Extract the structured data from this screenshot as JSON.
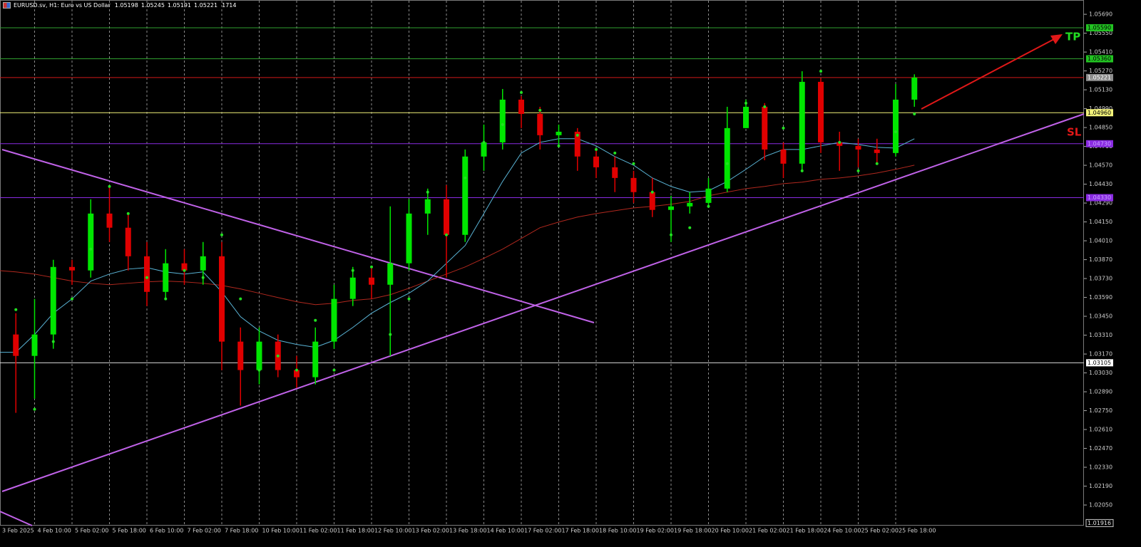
{
  "chart_data": {
    "type": "candlestick",
    "title": "EURUSD.sv, H1:  Euro vs US Dollar",
    "quote": [
      "1.05198",
      "1.05245",
      "1.05191",
      "1.05221",
      "1714"
    ],
    "categories": [
      "3 Feb 2025",
      null,
      "4 Feb 10:00",
      null,
      "5 Feb 02:00",
      null,
      "5 Feb 18:00",
      null,
      "6 Feb 10:00",
      null,
      "7 Feb 02:00",
      null,
      "7 Feb 18:00",
      null,
      "10 Feb 10:00",
      null,
      "11 Feb 02:00",
      null,
      "11 Feb 18:00",
      null,
      "12 Feb 10:00",
      null,
      "13 Feb 02:00",
      null,
      "13 Feb 18:00",
      null,
      "14 Feb 10:00",
      null,
      "17 Feb 02:00",
      null,
      "17 Feb 18:00",
      null,
      "18 Feb 10:00",
      null,
      "19 Feb 02:00",
      null,
      "19 Feb 18:00",
      null,
      "20 Feb 10:00",
      null,
      "21 Feb 02:00",
      null,
      "21 Feb 18:00",
      null,
      "24 Feb 10:00",
      null,
      "25 Feb 02:00",
      null,
      "25 Feb 18:00",
      null
    ],
    "open": [
      1.02628,
      1.03315,
      1.03156,
      1.03315,
      1.03816,
      1.0379,
      1.04212,
      1.04107,
      1.03895,
      1.03631,
      1.03843,
      1.0379,
      1.03895,
      1.03262,
      1.03051,
      1.03262,
      1.03051,
      1.02998,
      1.03262,
      1.03579,
      1.03737,
      1.03684,
      1.03843,
      1.04212,
      1.04318,
      1.04054,
      1.04635,
      1.0474,
      1.05057,
      1.04951,
      1.04793,
      1.04819,
      1.04635,
      1.04555,
      1.04476,
      1.04371,
      1.04239,
      1.04265,
      1.04291,
      1.04397,
      1.04846,
      1.05004,
      1.04687,
      1.04582,
      1.05189,
      1.0474,
      1.04714,
      1.04687,
      1.04661,
      1.05057
    ],
    "high": [
      1.03526,
      1.03473,
      1.03579,
      1.03869,
      1.03869,
      1.04318,
      1.04423,
      1.04212,
      1.04001,
      1.03948,
      1.03948,
      1.04001,
      1.04001,
      1.03367,
      1.03367,
      1.03315,
      1.03156,
      1.03367,
      1.03684,
      1.03816,
      1.03816,
      1.04265,
      1.04318,
      1.04397,
      1.04423,
      1.04687,
      1.04872,
      1.05136,
      1.05083,
      1.05004,
      1.04872,
      1.04846,
      1.04687,
      1.04635,
      1.04529,
      1.04476,
      1.04344,
      1.04371,
      1.04476,
      1.05004,
      1.05057,
      1.05031,
      1.0474,
      1.05268,
      1.05215,
      1.04819,
      1.04767,
      1.04767,
      1.05173,
      1.05245
    ],
    "low": [
      1.02417,
      1.02734,
      1.02839,
      1.03209,
      1.03684,
      1.03737,
      1.04001,
      1.0379,
      1.03526,
      1.03579,
      1.03684,
      1.03684,
      1.03051,
      1.02787,
      1.02945,
      1.02998,
      1.02919,
      1.02945,
      1.03209,
      1.03526,
      1.03579,
      1.03156,
      1.0379,
      1.04054,
      1.03737,
      1.04001,
      1.04529,
      1.04687,
      1.04846,
      1.04687,
      1.04714,
      1.04529,
      1.04476,
      1.04371,
      1.04291,
      1.04186,
      1.04001,
      1.04212,
      1.04265,
      1.04371,
      1.04846,
      1.04608,
      1.04476,
      1.04529,
      1.04661,
      1.04529,
      1.04555,
      1.04582,
      1.04635,
      1.05004
    ],
    "close": [
      1.03315,
      1.03156,
      1.03315,
      1.03816,
      1.0379,
      1.04212,
      1.04107,
      1.03895,
      1.03631,
      1.03843,
      1.0379,
      1.03895,
      1.03262,
      1.03051,
      1.03262,
      1.03051,
      1.02998,
      1.03262,
      1.03579,
      1.03737,
      1.03684,
      1.03843,
      1.04212,
      1.04318,
      1.04054,
      1.04635,
      1.0474,
      1.05057,
      1.04951,
      1.04793,
      1.04819,
      1.04635,
      1.04555,
      1.04476,
      1.04371,
      1.04239,
      1.04265,
      1.04291,
      1.04397,
      1.04846,
      1.05004,
      1.04687,
      1.04582,
      1.05189,
      1.0474,
      1.04714,
      1.04687,
      1.04661,
      1.05057,
      1.05221
    ],
    "up_color": "#00e600",
    "down_color": "#e00000",
    "moving_averages": [
      {
        "color": "#b0281e",
        "values": [
          1.0379,
          1.03779,
          1.03763,
          1.03737,
          1.03711,
          1.03695,
          1.03684,
          1.03695,
          1.03705,
          1.03711,
          1.03705,
          1.03695,
          1.03679,
          1.03653,
          1.03621,
          1.03589,
          1.03558,
          1.03536,
          1.03547,
          1.03568,
          1.03579,
          1.0361,
          1.03658,
          1.03711,
          1.03763,
          1.03816,
          1.0388,
          1.03948,
          1.04027,
          1.04107,
          1.04149,
          1.04186,
          1.04212,
          1.04233,
          1.04254,
          1.04265,
          1.04281,
          1.04302,
          1.04344,
          1.04371,
          1.04397,
          1.04413,
          1.04434,
          1.04445,
          1.04466,
          1.04476,
          1.04492,
          1.04513,
          1.0454,
          1.04571
        ]
      },
      {
        "color": "#5ab4d6",
        "values": [
          1.03183,
          1.03183,
          1.03315,
          1.03473,
          1.03579,
          1.03711,
          1.03763,
          1.038,
          1.03811,
          1.03779,
          1.03763,
          1.03779,
          1.03631,
          1.03447,
          1.03341,
          1.03272,
          1.03241,
          1.0322,
          1.03272,
          1.03367,
          1.03473,
          1.03552,
          1.03621,
          1.03711,
          1.03843,
          1.03975,
          1.04212,
          1.0445,
          1.04661,
          1.0474,
          1.04767,
          1.04767,
          1.04714,
          1.04635,
          1.04571,
          1.04476,
          1.04413,
          1.04371,
          1.04381,
          1.0445,
          1.0454,
          1.04635,
          1.04687,
          1.04687,
          1.04714,
          1.0474,
          1.04724,
          1.04703,
          1.04698,
          1.04767
        ]
      }
    ],
    "sar": {
      "color": "#22e022",
      "values": [
        1.02364,
        1.03499,
        1.0276,
        1.03262,
        1.03579,
        1.03948,
        1.04413,
        1.04212,
        1.03737,
        1.03579,
        1.0379,
        1.03737,
        1.04054,
        1.03579,
        1.03051,
        1.03156,
        1.03051,
        1.0342,
        1.03051,
        1.0379,
        1.03816,
        1.03315,
        1.03579,
        1.04371,
        1.04054,
        1.04476,
        1.0474,
        1.04872,
        1.0511,
        1.04978,
        1.04714,
        1.04793,
        1.04687,
        1.04661,
        1.04582,
        1.04371,
        1.04054,
        1.04107,
        1.04265,
        1.04582,
        1.05031,
        1.05004,
        1.04846,
        1.04529,
        1.05268,
        1.0474,
        1.04529,
        1.04582,
        1.04819,
        1.04951
      ]
    },
    "ylim": [
      1.01897,
      1.05775
    ],
    "yticks": [
      {
        "value": 1.0569,
        "label": "1.05690"
      },
      {
        "value": 1.0555,
        "label": "1.05550"
      },
      {
        "value": 1.0541,
        "label": "1.05410"
      },
      {
        "value": 1.0527,
        "label": "1.05270"
      },
      {
        "value": 1.0513,
        "label": "1.05130"
      },
      {
        "value": 1.0499,
        "label": "1.04990"
      },
      {
        "value": 1.0485,
        "label": "1.04850"
      },
      {
        "value": 1.0471,
        "label": "1.04710"
      },
      {
        "value": 1.0457,
        "label": "1.04570"
      },
      {
        "value": 1.0443,
        "label": "1.04430"
      },
      {
        "value": 1.0429,
        "label": "1.04290"
      },
      {
        "value": 1.0415,
        "label": "1.04150"
      },
      {
        "value": 1.0401,
        "label": "1.04010"
      },
      {
        "value": 1.0387,
        "label": "1.03870"
      },
      {
        "value": 1.0373,
        "label": "1.03730"
      },
      {
        "value": 1.0359,
        "label": "1.03590"
      },
      {
        "value": 1.0345,
        "label": "1.03450"
      },
      {
        "value": 1.0331,
        "label": "1.03310"
      },
      {
        "value": 1.0317,
        "label": "1.03170"
      },
      {
        "value": 1.0303,
        "label": "1.03030"
      },
      {
        "value": 1.0289,
        "label": "1.02890"
      },
      {
        "value": 1.0275,
        "label": "1.02750"
      },
      {
        "value": 1.0261,
        "label": "1.02610"
      },
      {
        "value": 1.0247,
        "label": "1.02470"
      },
      {
        "value": 1.0233,
        "label": "1.02330"
      },
      {
        "value": 1.0219,
        "label": "1.02190"
      },
      {
        "value": 1.0205,
        "label": "1.02050"
      }
    ],
    "levels": [
      {
        "value": 1.0559,
        "label": "1.05590",
        "color": "#2f9e2f",
        "box": "#22c322",
        "text_color": "#000000"
      },
      {
        "value": 1.0536,
        "label": "1.05360",
        "color": "#2f9e2f",
        "box": "#22c322",
        "text_color": "#000000"
      },
      {
        "value": 1.05221,
        "label": "1.05221",
        "color": "#d01818",
        "box": "#8c8c8c",
        "text_color": "#ffffff"
      },
      {
        "value": 1.0496,
        "label": "1.04960",
        "color": "#f2f27a",
        "box": "#f2f27a",
        "text_color": "#000000"
      },
      {
        "value": 1.0473,
        "label": "1.04730",
        "color": "#8a2be2",
        "box": "#8a2be2",
        "text_color": "#c8a0ff"
      },
      {
        "value": 1.0433,
        "label": "1.04330",
        "color": "#8a2be2",
        "box": "#8a2be2",
        "text_color": "#c8a0ff"
      },
      {
        "value": 1.03105,
        "label": "1.03105",
        "color": "#d8d8d8",
        "box": "#ffffff",
        "text_color": "#000000"
      }
    ],
    "bottom_label": {
      "value": 1.01916,
      "label": "1.01916"
    },
    "grid": "vertical",
    "annotations": {
      "tp": "TP",
      "sl": "SL"
    }
  }
}
